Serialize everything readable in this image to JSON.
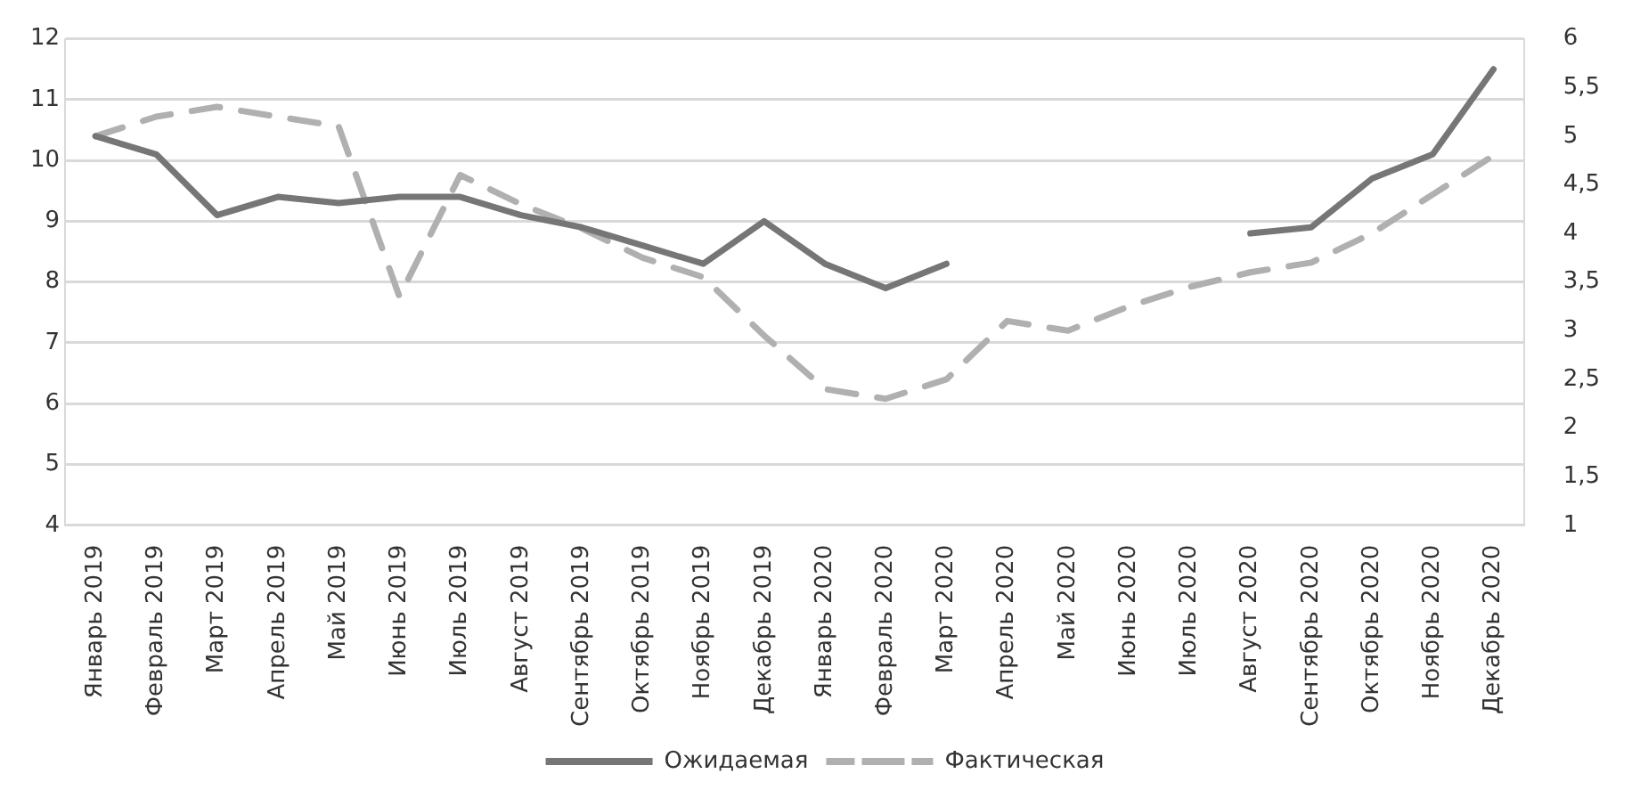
{
  "chart_data": {
    "type": "line",
    "categories": [
      "Январь 2019",
      "Февраль 2019",
      "Март 2019",
      "Апрель 2019",
      "Май 2019",
      "Июнь 2019",
      "Июль 2019",
      "Август 2019",
      "Сентябрь 2019",
      "Октябрь 2019",
      "Ноябрь 2019",
      "Декабрь 2019",
      "Январь 2020",
      "Февраль 2020",
      "Март 2020",
      "Апрель 2020",
      "Май 2020",
      "Июнь 2020",
      "Июль 2020",
      "Август 2020",
      "Сентябрь 2020",
      "Октябрь 2020",
      "Ноябрь 2020",
      "Декабрь 2020"
    ],
    "series": [
      {
        "name": "Ожидаемая",
        "color": "#767676",
        "line_style": "solid",
        "values": [
          10.4,
          10.1,
          9.1,
          9.4,
          9.3,
          9.4,
          9.4,
          9.1,
          8.9,
          8.6,
          8.3,
          9.0,
          8.3,
          7.9,
          8.3,
          null,
          null,
          null,
          null,
          8.8,
          8.9,
          9.7,
          10.1,
          11.5
        ]
      },
      {
        "name": "Фактическая",
        "color": "#b0b0b0",
        "line_style": "dashed",
        "axis": "y2",
        "values": [
          5.0,
          5.2,
          5.3,
          5.2,
          5.1,
          3.35,
          4.6,
          4.3,
          4.05,
          3.75,
          3.55,
          2.95,
          2.4,
          2.3,
          2.5,
          3.1,
          3.0,
          3.25,
          3.45,
          3.6,
          3.7,
          4.0,
          4.4,
          4.8
        ]
      }
    ],
    "ylim": [
      4,
      12
    ],
    "yticks": [
      4,
      5,
      6,
      7,
      8,
      9,
      10,
      11,
      12
    ],
    "y2lim": [
      1,
      6
    ],
    "y2ticks": [
      {
        "value": 1,
        "label": "1"
      },
      {
        "value": 1.5,
        "label": "1,5"
      },
      {
        "value": 2,
        "label": "2"
      },
      {
        "value": 2.5,
        "label": "2,5"
      },
      {
        "value": 3,
        "label": "3"
      },
      {
        "value": 3.5,
        "label": "3,5"
      },
      {
        "value": 4,
        "label": "4"
      },
      {
        "value": 4.5,
        "label": "4,5"
      },
      {
        "value": 5,
        "label": "5"
      },
      {
        "value": 5.5,
        "label": "5,5"
      },
      {
        "value": 6,
        "label": "6"
      }
    ],
    "grid": "y",
    "legend": "bottom",
    "marker": "none"
  }
}
